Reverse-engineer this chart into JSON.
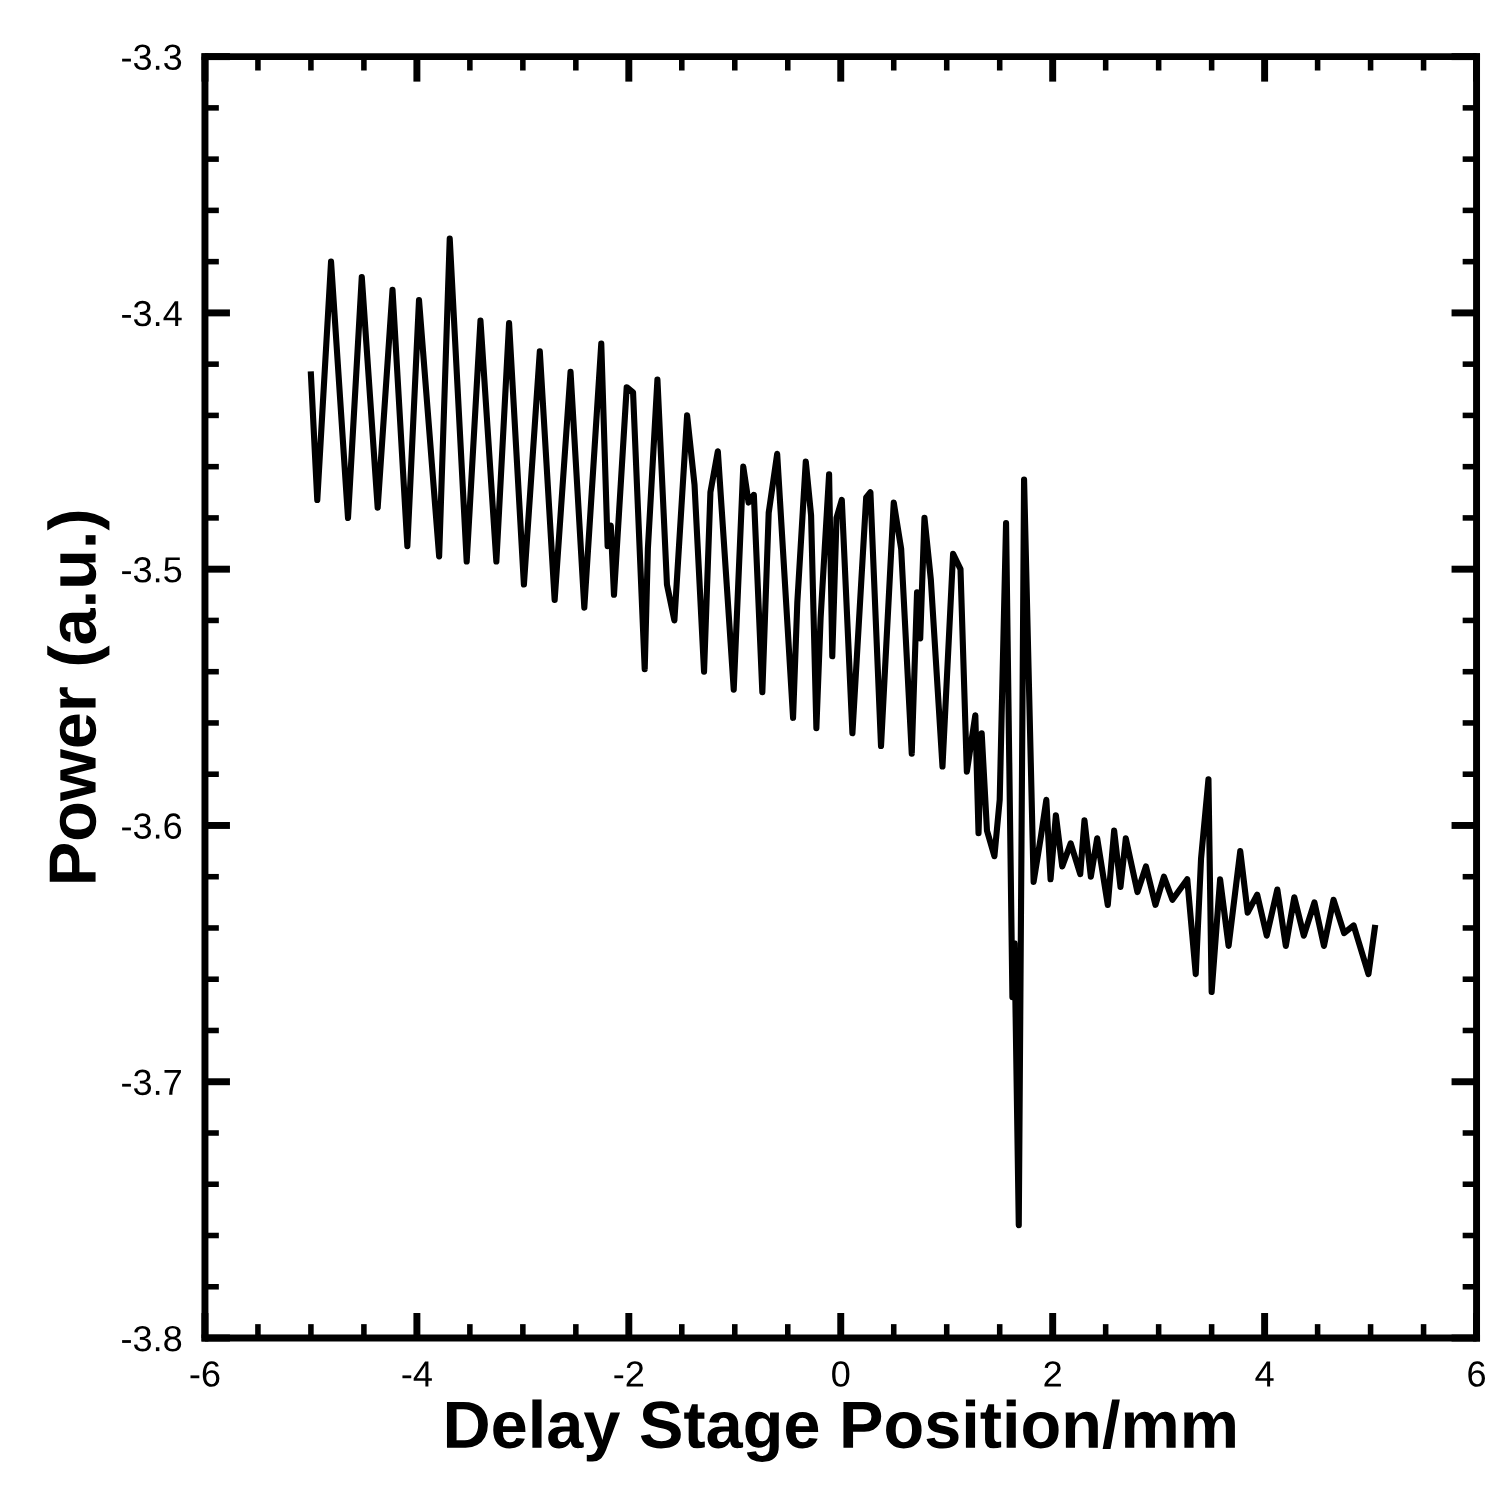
{
  "chart_data": {
    "type": "line",
    "xlabel": "Delay Stage Position/mm",
    "ylabel": "Power (a.u.)",
    "xlim": [
      -6,
      6
    ],
    "xticks": [
      -6,
      -4,
      -2,
      0,
      2,
      4,
      6
    ],
    "ylim": [
      -3.8,
      -3.3
    ],
    "yticks": [
      -3.8,
      -3.7,
      -3.6,
      -3.5,
      -3.4,
      -3.3
    ],
    "grid": false,
    "legend": false,
    "marker": "none",
    "line_style": "solid",
    "series": [
      {
        "color": "#000000",
        "x": [
          -5.0,
          -4.94,
          -4.81,
          -4.65,
          -4.52,
          -4.37,
          -4.23,
          -4.09,
          -3.98,
          -3.79,
          -3.69,
          -3.53,
          -3.4,
          -3.25,
          -3.13,
          -2.99,
          -2.84,
          -2.7,
          -2.55,
          -2.42,
          -2.26,
          -2.2,
          -2.17,
          -2.14,
          -2.02,
          -1.96,
          -1.85,
          -1.82,
          -1.73,
          -1.64,
          -1.57,
          -1.45,
          -1.38,
          -1.29,
          -1.23,
          -1.16,
          -1.01,
          -0.92,
          -0.87,
          -0.82,
          -0.74,
          -0.68,
          -0.6,
          -0.45,
          -0.41,
          -0.33,
          -0.28,
          -0.23,
          -0.19,
          -0.11,
          -0.08,
          -0.04,
          0.01,
          0.11,
          0.24,
          0.28,
          0.38,
          0.5,
          0.57,
          0.67,
          0.72,
          0.75,
          0.79,
          0.85,
          0.96,
          1.06,
          1.13,
          1.19,
          1.27,
          1.3,
          1.33,
          1.38,
          1.45,
          1.5,
          1.56,
          1.62,
          1.64,
          1.68,
          1.73,
          1.82,
          1.89,
          1.94,
          1.98,
          2.03,
          2.09,
          2.17,
          2.26,
          2.3,
          2.36,
          2.42,
          2.52,
          2.58,
          2.64,
          2.69,
          2.8,
          2.88,
          2.97,
          3.05,
          3.13,
          3.27,
          3.35,
          3.4,
          3.47,
          3.5,
          3.58,
          3.66,
          3.77,
          3.84,
          3.93,
          4.02,
          4.12,
          4.2,
          4.28,
          4.37,
          4.47,
          4.56,
          4.65,
          4.75,
          4.84,
          4.98,
          5.04
        ],
        "values": [
          -3.424,
          -3.473,
          -3.38,
          -3.48,
          -3.386,
          -3.476,
          -3.391,
          -3.491,
          -3.395,
          -3.495,
          -3.371,
          -3.497,
          -3.403,
          -3.497,
          -3.404,
          -3.506,
          -3.415,
          -3.512,
          -3.423,
          -3.515,
          -3.412,
          -3.491,
          -3.483,
          -3.51,
          -3.429,
          -3.431,
          -3.539,
          -3.492,
          -3.426,
          -3.506,
          -3.52,
          -3.44,
          -3.467,
          -3.54,
          -3.47,
          -3.454,
          -3.547,
          -3.46,
          -3.474,
          -3.471,
          -3.548,
          -3.478,
          -3.455,
          -3.558,
          -3.513,
          -3.458,
          -3.479,
          -3.562,
          -3.519,
          -3.463,
          -3.534,
          -3.48,
          -3.473,
          -3.564,
          -3.472,
          -3.47,
          -3.569,
          -3.474,
          -3.492,
          -3.572,
          -3.509,
          -3.527,
          -3.48,
          -3.504,
          -3.577,
          -3.494,
          -3.5,
          -3.579,
          -3.557,
          -3.603,
          -3.564,
          -3.602,
          -3.612,
          -3.59,
          -3.482,
          -3.667,
          -3.646,
          -3.756,
          -3.465,
          -3.622,
          -3.604,
          -3.59,
          -3.621,
          -3.596,
          -3.616,
          -3.607,
          -3.619,
          -3.598,
          -3.62,
          -3.605,
          -3.631,
          -3.602,
          -3.624,
          -3.605,
          -3.626,
          -3.616,
          -3.631,
          -3.62,
          -3.629,
          -3.621,
          -3.658,
          -3.613,
          -3.582,
          -3.665,
          -3.621,
          -3.647,
          -3.61,
          -3.634,
          -3.627,
          -3.643,
          -3.625,
          -3.647,
          -3.628,
          -3.643,
          -3.63,
          -3.647,
          -3.629,
          -3.642,
          -3.639,
          -3.658,
          -3.64
        ]
      }
    ]
  }
}
